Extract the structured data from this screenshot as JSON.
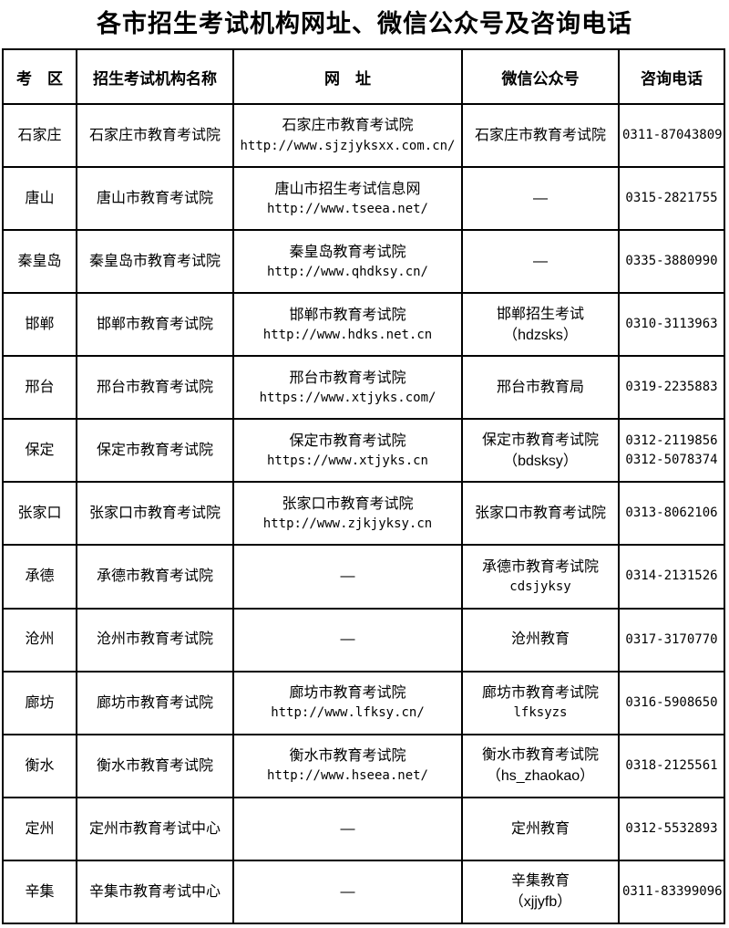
{
  "title": "各市招生考试机构网址、微信公众号及咨询电话",
  "table": {
    "headers": [
      "考　区",
      "招生考试机构名称",
      "网　址",
      "微信公众号",
      "咨询电话"
    ],
    "rows": [
      {
        "region": "石家庄",
        "org": "石家庄市教育考试院",
        "site": [
          "石家庄市教育考试院",
          "http://www.sjzjyksxx.com.cn/"
        ],
        "wechat": [
          "石家庄市教育考试院"
        ],
        "phone": [
          "0311-87043809"
        ]
      },
      {
        "region": "唐山",
        "org": "唐山市教育考试院",
        "site": [
          "唐山市招生考试信息网",
          "http://www.tseea.net/"
        ],
        "wechat": [
          "—"
        ],
        "phone": [
          "0315-2821755"
        ]
      },
      {
        "region": "秦皇岛",
        "org": "秦皇岛市教育考试院",
        "site": [
          "秦皇岛教育考试院",
          "http://www.qhdksy.cn/"
        ],
        "wechat": [
          "—"
        ],
        "phone": [
          "0335-3880990"
        ]
      },
      {
        "region": "邯郸",
        "org": "邯郸市教育考试院",
        "site": [
          "邯郸市教育考试院",
          "http://www.hdks.net.cn"
        ],
        "wechat": [
          "邯郸招生考试",
          "（hdzsks）"
        ],
        "phone": [
          "0310-3113963"
        ]
      },
      {
        "region": "邢台",
        "org": "邢台市教育考试院",
        "site": [
          "邢台市教育考试院",
          "https://www.xtjyks.com/"
        ],
        "wechat": [
          "邢台市教育局"
        ],
        "phone": [
          "0319-2235883"
        ]
      },
      {
        "region": "保定",
        "org": "保定市教育考试院",
        "site": [
          "保定市教育考试院",
          "https://www.xtjyks.cn"
        ],
        "wechat": [
          "保定市教育考试院",
          "（bdsksy）"
        ],
        "phone": [
          "0312-2119856",
          "0312-5078374"
        ]
      },
      {
        "region": "张家口",
        "org": "张家口市教育考试院",
        "site": [
          "张家口市教育考试院",
          "http://www.zjkjyksy.cn"
        ],
        "wechat": [
          "张家口市教育考试院"
        ],
        "phone": [
          "0313-8062106"
        ]
      },
      {
        "region": "承德",
        "org": "承德市教育考试院",
        "site": [
          "—"
        ],
        "wechat": [
          "承德市教育考试院",
          "cdsjyksy"
        ],
        "phone": [
          "0314-2131526"
        ]
      },
      {
        "region": "沧州",
        "org": "沧州市教育考试院",
        "site": [
          "—"
        ],
        "wechat": [
          "沧州教育"
        ],
        "phone": [
          "0317-3170770"
        ]
      },
      {
        "region": "廊坊",
        "org": "廊坊市教育考试院",
        "site": [
          "廊坊市教育考试院",
          "http://www.lfksy.cn/"
        ],
        "wechat": [
          "廊坊市教育考试院",
          "lfksyzs"
        ],
        "phone": [
          "0316-5908650"
        ]
      },
      {
        "region": "衡水",
        "org": "衡水市教育考试院",
        "site": [
          "衡水市教育考试院",
          "http://www.hseea.net/"
        ],
        "wechat": [
          "衡水市教育考试院",
          "（hs_zhaokao）"
        ],
        "phone": [
          "0318-2125561"
        ]
      },
      {
        "region": "定州",
        "org": "定州市教育考试中心",
        "site": [
          "—"
        ],
        "wechat": [
          "定州教育"
        ],
        "phone": [
          "0312-5532893"
        ]
      },
      {
        "region": "辛集",
        "org": "辛集市教育考试中心",
        "site": [
          "—"
        ],
        "wechat": [
          "辛集教育",
          "（xjjyfb）"
        ],
        "phone": [
          "0311-83399096"
        ]
      }
    ]
  }
}
